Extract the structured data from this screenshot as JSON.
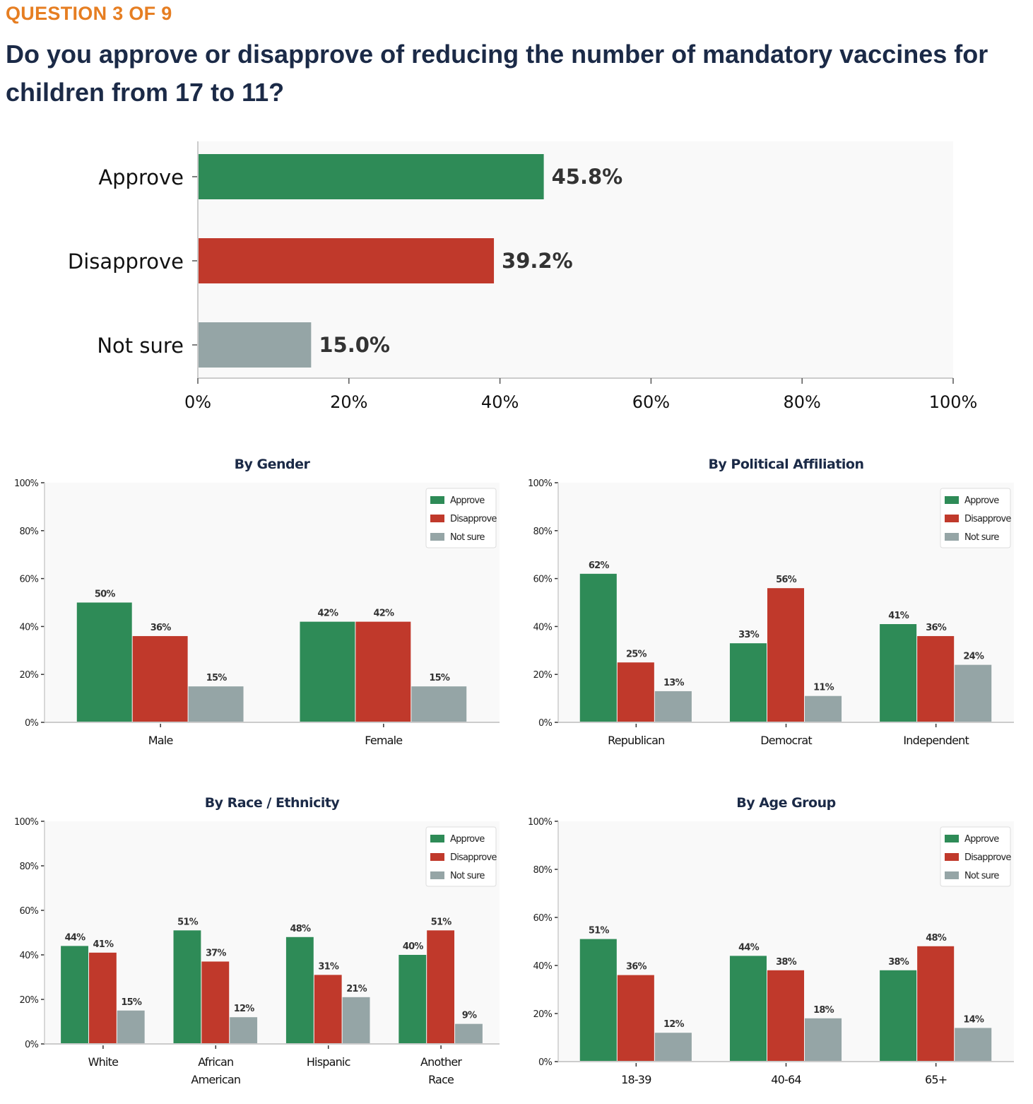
{
  "header": {
    "question_label": "QUESTION 3 OF 9",
    "title": "Do you approve or disapprove of reducing the number of mandatory vaccines for children from 17 to 11?"
  },
  "colors": {
    "approve": "#2e8b57",
    "disapprove": "#c0392b",
    "not_sure": "#95a5a6",
    "plot_bg": "#f9f9f9",
    "title": "#1b2a47",
    "accent": "#e67e22"
  },
  "chart_data": [
    {
      "type": "bar",
      "orientation": "horizontal",
      "title": "",
      "categories": [
        "Approve",
        "Disapprove",
        "Not sure"
      ],
      "values": [
        45.8,
        39.2,
        15.0
      ],
      "value_labels": [
        "45.8%",
        "39.2%",
        "15.0%"
      ],
      "xlim": [
        0,
        100
      ],
      "xticks": [
        "0%",
        "20%",
        "40%",
        "60%",
        "80%",
        "100%"
      ]
    },
    {
      "type": "bar",
      "title": "By Gender",
      "categories": [
        "Male",
        "Female"
      ],
      "series": [
        {
          "name": "Approve",
          "values": [
            50,
            42
          ],
          "labels": [
            "50%",
            "42%"
          ]
        },
        {
          "name": "Disapprove",
          "values": [
            36,
            42
          ],
          "labels": [
            "36%",
            "42%"
          ]
        },
        {
          "name": "Not sure",
          "values": [
            15,
            15
          ],
          "labels": [
            "15%",
            "15%"
          ]
        }
      ],
      "ylim": [
        0,
        100
      ],
      "yticks": [
        "0%",
        "20%",
        "40%",
        "60%",
        "80%",
        "100%"
      ],
      "legend": "top-right"
    },
    {
      "type": "bar",
      "title": "By Political Affiliation",
      "categories": [
        "Republican",
        "Democrat",
        "Independent"
      ],
      "series": [
        {
          "name": "Approve",
          "values": [
            62,
            33,
            41
          ],
          "labels": [
            "62%",
            "33%",
            "41%"
          ]
        },
        {
          "name": "Disapprove",
          "values": [
            25,
            56,
            36
          ],
          "labels": [
            "25%",
            "56%",
            "36%"
          ]
        },
        {
          "name": "Not sure",
          "values": [
            13,
            11,
            24
          ],
          "labels": [
            "13%",
            "11%",
            "24%"
          ]
        }
      ],
      "ylim": [
        0,
        100
      ],
      "yticks": [
        "0%",
        "20%",
        "40%",
        "60%",
        "80%",
        "100%"
      ],
      "legend": "top-right"
    },
    {
      "type": "bar",
      "title": "By Race / Ethnicity",
      "categories": [
        "White",
        "African\nAmerican",
        "Hispanic",
        "Another\nRace"
      ],
      "series": [
        {
          "name": "Approve",
          "values": [
            44,
            51,
            48,
            40
          ],
          "labels": [
            "44%",
            "51%",
            "48%",
            "40%"
          ]
        },
        {
          "name": "Disapprove",
          "values": [
            41,
            37,
            31,
            51
          ],
          "labels": [
            "41%",
            "37%",
            "31%",
            "51%"
          ]
        },
        {
          "name": "Not sure",
          "values": [
            15,
            12,
            21,
            9
          ],
          "labels": [
            "15%",
            "12%",
            "21%",
            "9%"
          ]
        }
      ],
      "ylim": [
        0,
        100
      ],
      "yticks": [
        "0%",
        "20%",
        "40%",
        "60%",
        "80%",
        "100%"
      ],
      "legend": "top-right"
    },
    {
      "type": "bar",
      "title": "By Age Group",
      "categories": [
        "18-39",
        "40-64",
        "65+"
      ],
      "series": [
        {
          "name": "Approve",
          "values": [
            51,
            44,
            38
          ],
          "labels": [
            "51%",
            "44%",
            "38%"
          ]
        },
        {
          "name": "Disapprove",
          "values": [
            36,
            38,
            48
          ],
          "labels": [
            "36%",
            "38%",
            "48%"
          ]
        },
        {
          "name": "Not sure",
          "values": [
            12,
            18,
            14
          ],
          "labels": [
            "12%",
            "18%",
            "14%"
          ]
        }
      ],
      "ylim": [
        0,
        100
      ],
      "yticks": [
        "0%",
        "20%",
        "40%",
        "60%",
        "80%",
        "100%"
      ],
      "legend": "top-right"
    }
  ]
}
